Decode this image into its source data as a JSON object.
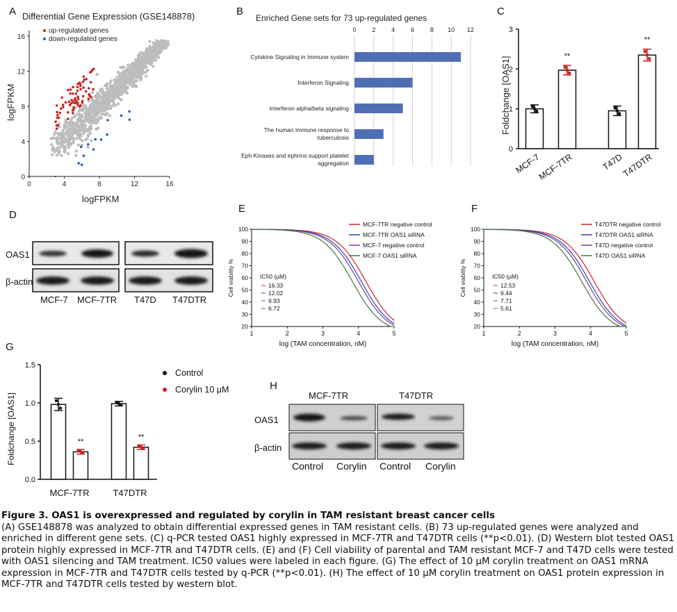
{
  "panels": {
    "A": {
      "label": "A",
      "title": "Differential Gene Expression (GSE148878)",
      "legend": [
        "up-regulated genes",
        "down-regulated genes"
      ],
      "xlabel": "logFPKM",
      "ylabel": "logFPKM",
      "xticks": [
        "0",
        "4",
        "8",
        "12",
        "16"
      ],
      "yticks": [
        "0",
        "4",
        "8",
        "12",
        "16"
      ],
      "colors": {
        "up": "#cc2222",
        "down": "#2a5fa8",
        "bulk": "#bdbdbd"
      }
    },
    "B": {
      "label": "B",
      "title": "Enriched Gene sets for 73 up-regulated genes",
      "xticks": [
        "0",
        "2",
        "4",
        "6",
        "8",
        "10",
        "12"
      ],
      "bar_color": "#4f6fb5"
    },
    "C": {
      "label": "C",
      "ylabel": "Foldchange [OAS1]",
      "yticks": [
        "0",
        "1",
        "2",
        "3"
      ],
      "groups": [
        "MCF-7",
        "MCF-7TR",
        "T47D",
        "T47DTR"
      ],
      "sig": [
        "**",
        "**"
      ]
    },
    "D": {
      "label": "D",
      "rows": [
        "OAS1",
        "β-actin"
      ],
      "lanes": [
        "MCF-7",
        "MCF-7TR",
        "T47D",
        "T47DTR"
      ]
    },
    "E": {
      "label": "E",
      "ylabel": "Cell viability %",
      "xlabel": "log (TAM concentration, nM)",
      "yticks": [
        "20",
        "30",
        "40",
        "50",
        "60",
        "70",
        "80",
        "90",
        "100"
      ],
      "xticks": [
        "1",
        "2",
        "3",
        "4",
        "5"
      ],
      "ic50_title": "IC50 (μM)",
      "legend": [
        "MCF-7TR negative control",
        "MCF-7TR OAS1 siRNA",
        "MCF-7 negative control",
        "MCF-7 OAS1 siRNA"
      ],
      "ic50": [
        "16.33",
        "12.02",
        "9.93",
        "6.72"
      ]
    },
    "F": {
      "label": "F",
      "ylabel": "Cell viability %",
      "xlabel": "log (TAM concentration, nM)",
      "yticks": [
        "20",
        "30",
        "40",
        "50",
        "60",
        "70",
        "80",
        "90",
        "100"
      ],
      "xticks": [
        "1",
        "2",
        "3",
        "4",
        "5"
      ],
      "ic50_title": "IC50 (μM)",
      "legend": [
        "T47DTR negative control",
        "T47DTR OAS1 siRNA",
        "T47D negative control",
        "T47D OAS1 siRNA"
      ],
      "ic50": [
        "12.53",
        "9.44",
        "7.71",
        "5.61"
      ]
    },
    "G": {
      "label": "G",
      "ylabel": "Foldchange [OAS1]",
      "yticks": [
        "0.0",
        "0.5",
        "1.0",
        "1.5"
      ],
      "groups": [
        "MCF-7TR",
        "T47DTR"
      ],
      "legend": [
        "Control",
        "Corylin 10 μM"
      ],
      "sig": [
        "**",
        "**"
      ]
    },
    "H": {
      "label": "H",
      "groups": [
        "MCF-7TR",
        "T47DTR"
      ],
      "rows": [
        "OAS1",
        "β-actin"
      ],
      "lanes": [
        "Control",
        "Corylin",
        "Control",
        "Corylin"
      ]
    }
  },
  "chart_data": [
    {
      "id": "B",
      "type": "bar",
      "orientation": "horizontal",
      "categories": [
        "Cytokine Signaling in Immune system",
        "Interferon Signaling",
        "Interferon alpha/beta signaling",
        "The human immune response to tuberculosis",
        "Eph Kinases and ephrins support platelet aggregation"
      ],
      "category_lines": [
        [
          "Cytokine Signaling in Immune system"
        ],
        [
          "Interferon Signaling"
        ],
        [
          "Interferon alpha/beta signaling"
        ],
        [
          "The human immune response to",
          "tuberculosis"
        ],
        [
          "Eph Kinases and ephrins support platelet",
          "aggregation"
        ]
      ],
      "values": [
        11,
        6,
        5,
        3,
        2
      ],
      "xlim": [
        0,
        12
      ]
    },
    {
      "id": "C",
      "type": "bar",
      "categories": [
        "MCF-7",
        "MCF-7TR",
        "T47D",
        "T47DTR"
      ],
      "values": [
        1.0,
        1.97,
        0.95,
        2.35
      ],
      "errors": [
        0.1,
        0.12,
        0.12,
        0.15
      ],
      "ylim": [
        0,
        3
      ]
    },
    {
      "id": "E",
      "type": "line",
      "xlim": [
        1,
        5
      ],
      "ylim": [
        20,
        100
      ],
      "series": [
        {
          "name": "MCF-7TR negative control",
          "color": "#d0202a",
          "ic50_log": 4.21
        },
        {
          "name": "MCF-7TR OAS1 siRNA",
          "color": "#2a44a8",
          "ic50_log": 4.08
        },
        {
          "name": "MCF-7 negative control",
          "color": "#7a3a9a",
          "ic50_log": 4.0
        },
        {
          "name": "MCF-7 OAS1 siRNA",
          "color": "#3a7a3a",
          "ic50_log": 3.83
        }
      ]
    },
    {
      "id": "F",
      "type": "line",
      "xlim": [
        1,
        5
      ],
      "ylim": [
        20,
        100
      ],
      "series": [
        {
          "name": "T47DTR negative control",
          "color": "#d0202a",
          "ic50_log": 4.1
        },
        {
          "name": "T47DTR OAS1 siRNA",
          "color": "#2a44a8",
          "ic50_log": 3.97
        },
        {
          "name": "T47D negative control",
          "color": "#7a3a9a",
          "ic50_log": 3.89
        },
        {
          "name": "T47D OAS1 siRNA",
          "color": "#3a7a3a",
          "ic50_log": 3.75
        }
      ]
    },
    {
      "id": "G",
      "type": "bar",
      "categories": [
        "MCF-7TR",
        "T47DTR"
      ],
      "series": [
        {
          "name": "Control",
          "values": [
            0.98,
            0.99
          ],
          "errors": [
            0.08,
            0.03
          ]
        },
        {
          "name": "Corylin 10 μM",
          "values": [
            0.36,
            0.42
          ],
          "errors": [
            0.03,
            0.03
          ]
        }
      ],
      "ylim": [
        0,
        1.5
      ]
    }
  ],
  "caption": {
    "title": "Figure 3. OAS1 is overexpressed and regulated by corylin in TAM resistant breast cancer cells",
    "body": "(A) GSE148878 was analyzed to obtain differential expressed genes in TAM resistant cells. (B) 73 up-regulated genes were analyzed and enriched in different gene sets. (C) q-PCR tested OAS1 highly expressed in MCF-7TR and T47DTR cells (**p<0.01). (D) Western blot tested OAS1 protein highly expressed in MCF-7TR and T47DTR cells. (E) and (F) Cell viability of parental and TAM resistant MCF-7 and T47D cells were tested with OAS1 silencing and TAM treatment. IC50 values were labeled in each figure. (G) The effect of 10 μM corylin treatment on OAS1 mRNA expression in MCF-7TR and T47DTR cells tested by q-PCR (**p<0.01). (H) The effect of 10 μM corylin treatment on OAS1 protein expression in MCF-7TR and T47DTR cells tested by western blot."
  }
}
